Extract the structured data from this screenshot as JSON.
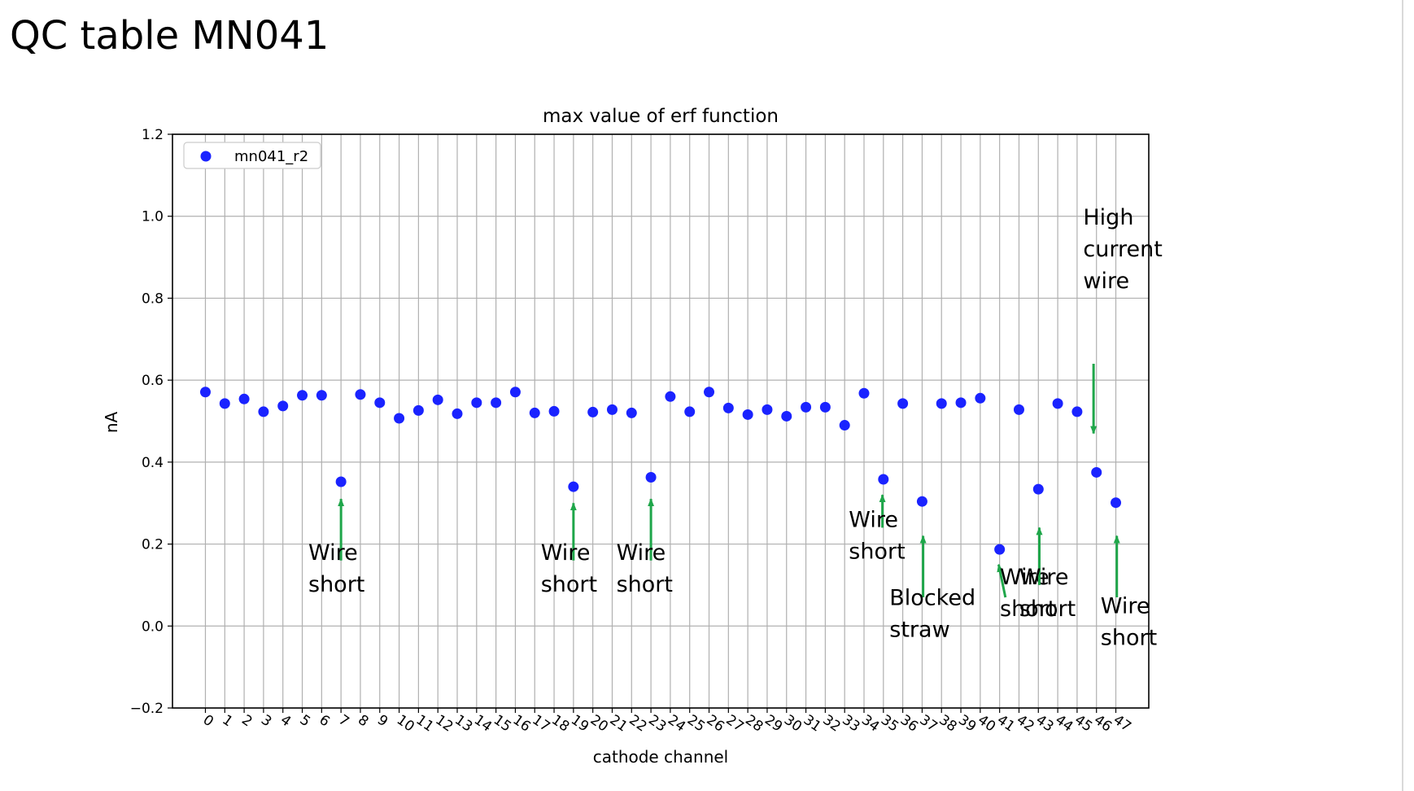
{
  "page_title": "QC table MN041",
  "chart_data": {
    "type": "scatter",
    "title": "max value of erf function",
    "xlabel": "cathode channel",
    "ylabel": "nA",
    "xlim": [
      -1.7,
      48.7
    ],
    "ylim": [
      -0.2,
      1.2
    ],
    "yticks": [
      "−0.2",
      "0.0",
      "0.2",
      "0.4",
      "0.6",
      "0.8",
      "1.0",
      "1.2"
    ],
    "ytick_values": [
      -0.2,
      0.0,
      0.2,
      0.4,
      0.6,
      0.8,
      1.0,
      1.2
    ],
    "xticks": [
      "0",
      "1",
      "2",
      "3",
      "4",
      "5",
      "6",
      "7",
      "8",
      "9",
      "10",
      "11",
      "12",
      "13",
      "14",
      "15",
      "16",
      "17",
      "18",
      "19",
      "20",
      "21",
      "22",
      "23",
      "24",
      "25",
      "26",
      "27",
      "28",
      "29",
      "30",
      "31",
      "32",
      "33",
      "34",
      "35",
      "36",
      "37",
      "38",
      "39",
      "40",
      "41",
      "42",
      "43",
      "44",
      "45",
      "46",
      "47"
    ],
    "grid": true,
    "legend_placement": "top-left",
    "series": [
      {
        "name": "mn041_r2",
        "color": "#1a23ff",
        "x": [
          0,
          1,
          2,
          3,
          4,
          5,
          6,
          7,
          8,
          9,
          10,
          11,
          12,
          13,
          14,
          15,
          16,
          17,
          18,
          19,
          20,
          21,
          22,
          23,
          24,
          25,
          26,
          27,
          28,
          29,
          30,
          31,
          32,
          33,
          34,
          35,
          36,
          37,
          38,
          39,
          40,
          41,
          42,
          43,
          44,
          45,
          46,
          47
        ],
        "y": [
          0.571,
          0.543,
          0.554,
          0.523,
          0.537,
          0.563,
          0.563,
          0.352,
          0.565,
          0.545,
          0.507,
          0.526,
          0.552,
          0.518,
          0.545,
          0.545,
          0.571,
          0.52,
          0.524,
          0.34,
          0.522,
          0.528,
          0.52,
          0.363,
          0.56,
          0.523,
          0.571,
          0.532,
          0.516,
          0.528,
          0.512,
          0.534,
          0.534,
          0.49,
          0.568,
          0.358,
          0.543,
          0.304,
          0.543,
          0.545,
          0.556,
          0.187,
          0.528,
          0.334,
          0.543,
          0.523,
          0.375,
          0.301
        ]
      }
    ],
    "annotations": [
      {
        "lines": [
          "Wire",
          "short"
        ],
        "channel": 7,
        "text_x": 6.7,
        "text_y": 0.12,
        "arrow": [
          7.0,
          0.16,
          7.0,
          0.31
        ]
      },
      {
        "lines": [
          "Wire",
          "short"
        ],
        "channel": 19,
        "text_x": 18.7,
        "text_y": 0.12,
        "arrow": [
          19.0,
          0.16,
          19.0,
          0.3
        ]
      },
      {
        "lines": [
          "Wire",
          "short"
        ],
        "channel": 23,
        "text_x": 22.6,
        "text_y": 0.12,
        "arrow": [
          23.0,
          0.16,
          23.0,
          0.31
        ]
      },
      {
        "lines": [
          "Wire",
          "short"
        ],
        "channel": 35,
        "text_x": 34.6,
        "text_y": 0.2,
        "arrow": [
          34.95,
          0.24,
          34.95,
          0.32
        ]
      },
      {
        "lines": [
          "Blocked",
          "straw"
        ],
        "channel": 37,
        "text_x": 36.7,
        "text_y": 0.01,
        "arrow": [
          37.05,
          0.07,
          37.05,
          0.22
        ]
      },
      {
        "lines": [
          "Wire",
          "short"
        ],
        "channel": 41,
        "text_x": 42.4,
        "text_y": 0.06,
        "arrow": [
          41.3,
          0.07,
          40.95,
          0.15
        ]
      },
      {
        "lines": [
          "Wire",
          "short"
        ],
        "channel": 43,
        "text_x": 43.4,
        "text_y": 0.06,
        "arrow": [
          43.05,
          0.1,
          43.05,
          0.24
        ]
      },
      {
        "lines": [
          "Wire",
          "short"
        ],
        "channel": 47,
        "text_x": 47.6,
        "text_y": -0.01,
        "arrow": [
          47.05,
          0.07,
          47.05,
          0.22
        ]
      },
      {
        "lines": [
          "High",
          "current",
          "wire"
        ],
        "channel": 46,
        "text_x": 46.7,
        "text_y": 0.86,
        "arrow": [
          45.85,
          0.64,
          45.85,
          0.47
        ]
      }
    ],
    "annotation_color": "#1fa64a"
  }
}
